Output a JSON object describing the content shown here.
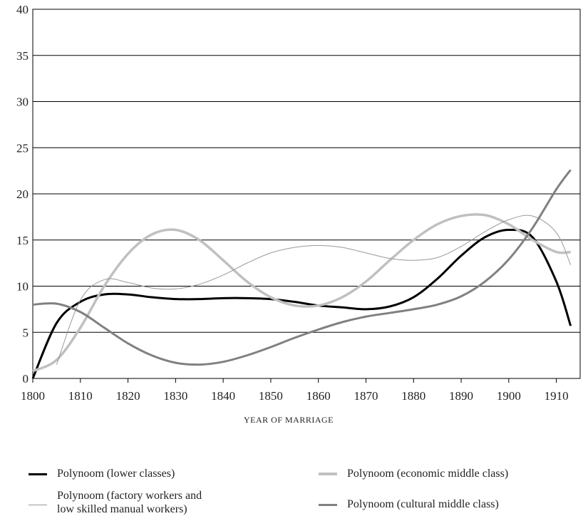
{
  "chart_data": {
    "type": "line",
    "xlabel": "YEAR OF MARRIAGE",
    "x": [
      1800,
      1805,
      1810,
      1815,
      1820,
      1825,
      1830,
      1835,
      1840,
      1845,
      1850,
      1855,
      1860,
      1865,
      1870,
      1875,
      1880,
      1885,
      1890,
      1895,
      1900,
      1905,
      1910,
      1913
    ],
    "series": [
      {
        "name": "Polynoom (lower classes)",
        "color": "#000000",
        "width": 3,
        "values": [
          0,
          6,
          8.3,
          9.1,
          9.1,
          8.8,
          8.6,
          8.6,
          8.7,
          8.7,
          8.6,
          8.3,
          7.9,
          7.7,
          7.5,
          7.8,
          8.8,
          10.8,
          13.3,
          15.3,
          16.1,
          15.3,
          10.5,
          5.7
        ]
      },
      {
        "name": "Polynoom (economic middle class)",
        "color": "#c0c0c0",
        "width": 3.5,
        "values": [
          0.8,
          2,
          5.5,
          10,
          13.5,
          15.6,
          16.1,
          15,
          12.8,
          10.5,
          8.8,
          7.9,
          7.9,
          8.8,
          10.5,
          12.8,
          15,
          16.7,
          17.6,
          17.7,
          16.7,
          15,
          13.7,
          13.7
        ]
      },
      {
        "name": "Polynoom (factory workers and low skilled manual workers)",
        "color": "#999999",
        "width": 1,
        "values": [
          null,
          1.5,
          8.5,
          10.7,
          10.4,
          9.8,
          9.7,
          10.2,
          11.2,
          12.5,
          13.6,
          14.2,
          14.4,
          14.2,
          13.6,
          13.0,
          12.8,
          13.1,
          14.3,
          15.9,
          17.2,
          17.6,
          15.8,
          12.3
        ]
      },
      {
        "name": "Polynoom (cultural middle class)",
        "color": "#808080",
        "width": 3,
        "values": [
          8,
          8.1,
          7.2,
          5.5,
          3.8,
          2.5,
          1.7,
          1.5,
          1.8,
          2.5,
          3.4,
          4.4,
          5.3,
          6.1,
          6.7,
          7.1,
          7.5,
          8.0,
          8.9,
          10.5,
          12.9,
          16.3,
          20.5,
          22.6
        ]
      }
    ],
    "xlim": [
      1800,
      1915
    ],
    "xticks": [
      1800,
      1810,
      1820,
      1830,
      1840,
      1850,
      1860,
      1870,
      1880,
      1890,
      1900,
      1910
    ],
    "ylim": [
      0,
      40
    ],
    "yticks": [
      0,
      5,
      10,
      15,
      20,
      25,
      30,
      35,
      40
    ],
    "grid": true
  }
}
